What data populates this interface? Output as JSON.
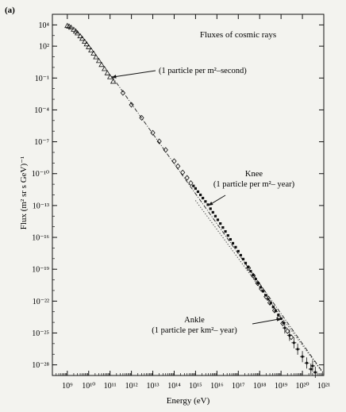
{
  "panel_label": "(a)",
  "chart_data": {
    "type": "scatter",
    "title": "Fluxes of cosmic rays",
    "xlabel": "Energy (eV)",
    "ylabel": "Flux (m² sr s GeV)⁻¹",
    "x_scale": "log",
    "y_scale": "log",
    "xlim": [
      200000000.0,
      1e+21
    ],
    "ylim": [
      1e-29,
      100000.0
    ],
    "x_ticks": [
      {
        "value": 1000000000.0,
        "label": "10⁹"
      },
      {
        "value": 10000000000.0,
        "label": "10¹⁰"
      },
      {
        "value": 100000000000.0,
        "label": "10¹¹"
      },
      {
        "value": 1000000000000.0,
        "label": "10¹²"
      },
      {
        "value": 10000000000000.0,
        "label": "10¹³"
      },
      {
        "value": 100000000000000.0,
        "label": "10¹⁴"
      },
      {
        "value": 1000000000000000.0,
        "label": "10¹⁵"
      },
      {
        "value": 1e+16,
        "label": "10¹⁶"
      },
      {
        "value": 1e+17,
        "label": "10¹⁷"
      },
      {
        "value": 1e+18,
        "label": "10¹⁸"
      },
      {
        "value": 1e+19,
        "label": "10¹⁹"
      },
      {
        "value": 1e+20,
        "label": "10²⁰"
      },
      {
        "value": 1e+21,
        "label": "10²¹"
      }
    ],
    "y_ticks": [
      {
        "value": 10000.0,
        "label": "10⁴"
      },
      {
        "value": 100.0,
        "label": "10²"
      },
      {
        "value": 0.1,
        "label": "10⁻¹"
      },
      {
        "value": 0.0001,
        "label": "10⁻⁴"
      },
      {
        "value": 1e-07,
        "label": "10⁻⁷"
      },
      {
        "value": 1e-10,
        "label": "10⁻¹⁰"
      },
      {
        "value": 1e-13,
        "label": "10⁻¹³"
      },
      {
        "value": 1e-16,
        "label": "10⁻¹⁶"
      },
      {
        "value": 1e-19,
        "label": "10⁻¹⁹"
      },
      {
        "value": 1e-22,
        "label": "10⁻²²"
      },
      {
        "value": 1e-25,
        "label": "10⁻²⁵"
      },
      {
        "value": 1e-28,
        "label": "10⁻²⁸"
      }
    ],
    "series": [
      {
        "marker": "triangle",
        "points": [
          [
            1000000000.0,
            8000
          ],
          [
            1200000000.0,
            7000
          ],
          [
            1500000000.0,
            5500
          ],
          [
            2000000000.0,
            3500
          ],
          [
            2500000000.0,
            2400
          ],
          [
            3000000000.0,
            1600
          ],
          [
            4000000000.0,
            850
          ],
          [
            5000000000.0,
            500
          ],
          [
            6500000000.0,
            260
          ],
          [
            8000000000.0,
            150
          ],
          [
            10000000000.0,
            80
          ],
          [
            13000000000.0,
            40
          ],
          [
            17000000000.0,
            20
          ],
          [
            22000000000.0,
            9
          ],
          [
            30000000000.0,
            4
          ],
          [
            40000000000.0,
            1.7
          ],
          [
            55000000000.0,
            0.7
          ],
          [
            75000000000.0,
            0.28
          ],
          [
            100000000000.0,
            0.12
          ],
          [
            140000000000.0,
            0.045
          ]
        ]
      },
      {
        "marker": "diamond",
        "points": [
          [
            400000000000.0,
            0.004
          ],
          [
            1000000000000.0,
            0.0003
          ],
          [
            3000000000000.0,
            1.8e-05
          ],
          [
            10000000000000.0,
            7e-07
          ],
          [
            20000000000000.0,
            1.1e-07
          ],
          [
            40000000000000.0,
            1.7e-08
          ],
          [
            100000000000000.0,
            1.5e-09
          ],
          [
            150000000000000.0,
            5e-10
          ],
          [
            250000000000000.0,
            1.3e-10
          ],
          [
            400000000000000.0,
            4e-11
          ],
          [
            600000000000000.0,
            1.3e-11
          ]
        ]
      },
      {
        "marker": "square",
        "points": [
          [
            800000000000000.0,
            7e-12
          ],
          [
            1000000000000000.0,
            4e-12
          ],
          [
            1300000000000000.0,
            2e-12
          ],
          [
            1700000000000000.0,
            1e-12
          ],
          [
            2200000000000000.0,
            5e-13
          ],
          [
            2900000000000000.0,
            2.4e-13
          ],
          [
            3800000000000000.0,
            1.2e-13
          ],
          [
            5000000000000000.0,
            5e-14
          ],
          [
            6500000000000000.0,
            2.3e-14
          ],
          [
            8500000000000000.0,
            1e-14
          ],
          [
            1.1e+16,
            4.5e-15
          ],
          [
            1.45e+16,
            2e-15
          ],
          [
            1.9e+16,
            8.5e-16
          ],
          [
            2.5e+16,
            3.6e-16
          ],
          [
            3.3e+16,
            1.5e-16
          ],
          [
            4.3e+16,
            6.5e-17
          ],
          [
            5.6e+16,
            2.8e-17
          ],
          [
            7.5e+16,
            1.2e-17
          ],
          [
            1e+17,
            5e-18
          ],
          [
            1.3e+17,
            2.1e-18
          ],
          [
            1.7e+17,
            9e-19
          ],
          [
            2.2e+17,
            3.8e-19
          ],
          [
            2.9e+17,
            1.6e-19
          ],
          [
            3.8e+17,
            6.5e-20
          ],
          [
            5e+17,
            2.8e-20
          ],
          [
            6.5e+17,
            1.2e-20
          ],
          [
            8.5e+17,
            5e-21
          ],
          [
            1.1e+18,
            2e-21
          ],
          [
            1.45e+18,
            8.5e-22
          ],
          [
            1.9e+18,
            3.6e-22
          ],
          [
            2.5e+18,
            1.5e-22
          ],
          [
            3.3e+18,
            6.5e-23
          ],
          [
            4.3e+18,
            2.8e-23
          ],
          [
            5.6e+18,
            1.2e-23
          ],
          [
            7.5e+18,
            5e-24
          ],
          [
            1e+19,
            2.2e-24
          ],
          [
            1.3e+19,
            9e-25
          ]
        ]
      },
      {
        "marker": "diamond",
        "points": [
          [
            3e+17,
            1.3e-19
          ],
          [
            5e+17,
            2.5e-20
          ],
          [
            8e+17,
            5e-21
          ],
          [
            1.2e+18,
            1.4e-21
          ],
          [
            2e+18,
            2.6e-22
          ],
          [
            3e+18,
            7e-23
          ],
          [
            5e+18,
            1.3e-23
          ],
          [
            8e+18,
            2.6e-24
          ],
          [
            1.2e+19,
            8e-25
          ],
          [
            2e+19,
            1.5e-25
          ],
          [
            3e+19,
            4e-26
          ]
        ]
      },
      {
        "marker": "cross",
        "points": [
          [
            1.5e+19,
            3e-25
          ],
          [
            2.5e+19,
            6e-26
          ],
          [
            4e+19,
            1.2e-26
          ],
          [
            6e+19,
            3e-27
          ],
          [
            1e+20,
            6e-28
          ],
          [
            1.6e+20,
            1.5e-28
          ],
          [
            2.5e+20,
            4e-29
          ],
          [
            3e+20,
            8e-29
          ],
          [
            4e+20,
            2e-29
          ]
        ]
      }
    ],
    "reference_lines": [
      {
        "style": "dash-dot",
        "points": [
          [
            120000000000.0,
            0.15
          ],
          [
            1e+21,
            1.5e-29
          ]
        ]
      },
      {
        "style": "dotted",
        "points": [
          [
            1000000000000000.0,
            3e-13
          ],
          [
            1e+21,
            1.3e-29
          ]
        ]
      }
    ],
    "annotations": [
      {
        "id": "one-per-second",
        "lines": [
          "(1 particle per m²–second)"
        ],
        "target": [
          120000000000.0,
          0.12
        ]
      },
      {
        "id": "knee",
        "lines": [
          "Knee",
          "(1 particle per m²– year)"
        ],
        "target": [
          4000000000000000.0,
          1e-13
        ]
      },
      {
        "id": "ankle",
        "lines": [
          "Ankle",
          "(1 particle per km²– year)"
        ],
        "target": [
          1e+19,
          2.2e-24
        ]
      }
    ]
  }
}
